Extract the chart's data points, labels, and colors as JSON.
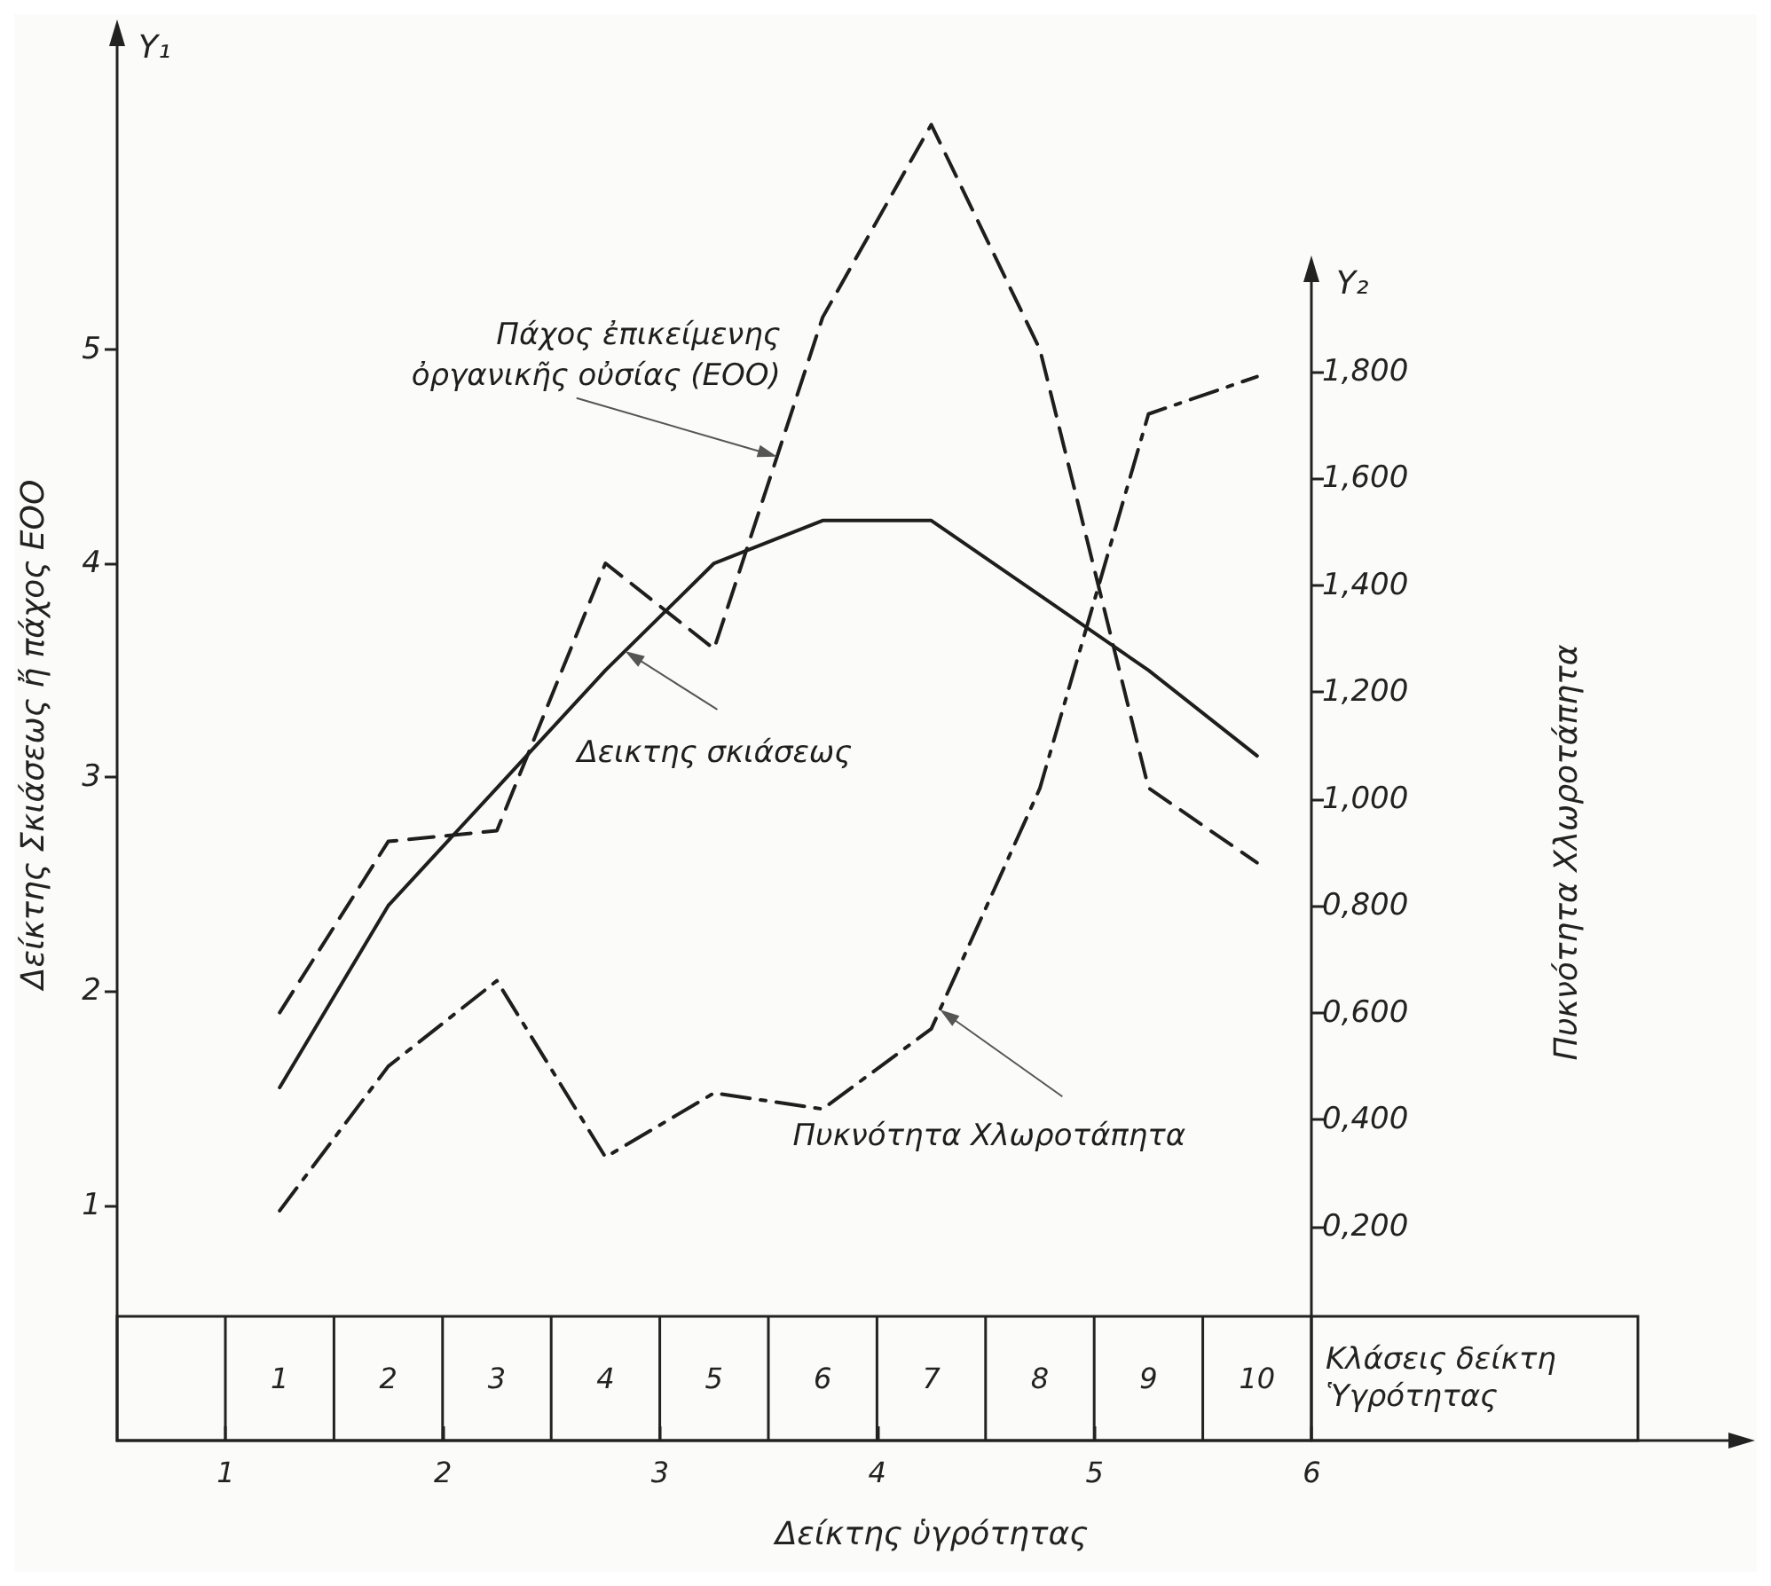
{
  "chart_data": {
    "type": "line",
    "xlabel": "Κλάσεις δείκτη Ὑγρότητας",
    "ylabel": "Δείκτης Σκιάσεως ἤ πάχος ΕΟΟ",
    "y2label": "Πυκνότητα Χλωροτάπητα",
    "x2label": "Δείκτης ὑγρότητας",
    "annotations": [
      "Y₁",
      "Y₂"
    ],
    "categories": [
      "1",
      "2",
      "3",
      "4",
      "5",
      "6",
      "7",
      "8",
      "9",
      "10"
    ],
    "series": [
      {
        "name": "Δεικτης σκιάσεως",
        "color": "#1e1e1e",
        "line_style": "solid",
        "values": [
          1.55,
          2.4,
          2.95,
          3.5,
          4.0,
          4.2,
          4.2,
          3.85,
          3.5,
          3.1
        ]
      },
      {
        "name": "Πάχος ἐπικείμενης ὀργανικῆς οὐσίας (ΕΟΟ)",
        "color": "#1e1e1e",
        "line_style": "dashed",
        "values": [
          1.9,
          2.7,
          2.75,
          4.0,
          3.6,
          5.15,
          6.05,
          5.0,
          2.95,
          2.6
        ]
      },
      {
        "name": "Πυκνότητα Χλωροτάπητα",
        "color": "#1e1e1e",
        "line_style": "dashdot",
        "axis": "y2",
        "values": [
          0.23,
          0.5,
          0.66,
          0.33,
          0.45,
          0.42,
          0.57,
          1.02,
          1.72,
          1.79
        ]
      }
    ],
    "x2lim": [
      0.5,
      8
    ],
    "x2ticks": [
      1,
      2,
      3,
      4,
      5,
      6
    ],
    "ylim": [
      -0.1,
      6.5
    ],
    "yticks": [
      1,
      2,
      3,
      4,
      5
    ],
    "y2lim": [
      -0.2,
      2
    ],
    "y2ticks": [
      {
        "value": 0.2,
        "label": "0,200"
      },
      {
        "value": 0.4,
        "label": "0,400"
      },
      {
        "value": 0.6,
        "label": "0,600"
      },
      {
        "value": 0.8,
        "label": "0,800"
      },
      {
        "value": 1.0,
        "label": "1,000"
      },
      {
        "value": 1.2,
        "label": "1,200"
      },
      {
        "value": 1.4,
        "label": "1,400"
      },
      {
        "value": 1.6,
        "label": "1,600"
      },
      {
        "value": 1.8,
        "label": "1,800"
      }
    ],
    "grid": false,
    "legend": false,
    "marker": "none"
  }
}
